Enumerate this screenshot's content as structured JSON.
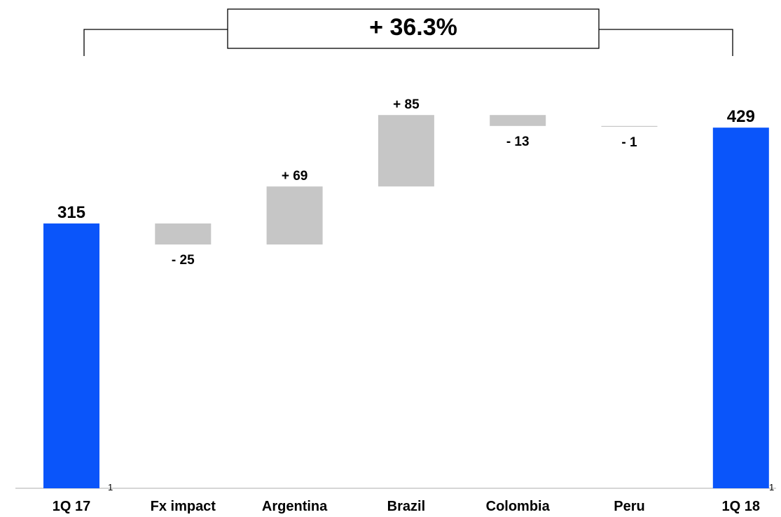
{
  "chart_data": {
    "type": "bar",
    "subtype": "waterfall",
    "categories": [
      "1Q 17",
      "Fx impact",
      "Argentina",
      "Brazil",
      "Colombia",
      "Peru",
      "1Q 18"
    ],
    "bars": [
      {
        "category": "1Q 17",
        "kind": "total",
        "value": 315,
        "label": "315"
      },
      {
        "category": "Fx impact",
        "kind": "delta",
        "value": -25,
        "label": "- 25"
      },
      {
        "category": "Argentina",
        "kind": "delta",
        "value": 69,
        "label": "+ 69"
      },
      {
        "category": "Brazil",
        "kind": "delta",
        "value": 85,
        "label": "+ 85"
      },
      {
        "category": "Colombia",
        "kind": "delta",
        "value": -13,
        "label": "- 13"
      },
      {
        "category": "Peru",
        "kind": "delta",
        "value": -1,
        "label": "- 1"
      },
      {
        "category": "1Q 18",
        "kind": "total",
        "value": 429,
        "label": "429"
      }
    ],
    "growth_label": "+ 36.3%",
    "ylim": [
      0,
      576
    ],
    "grid": false,
    "colors": {
      "total": "#0a55fa",
      "delta": "#c6c6c6",
      "axis": "#c8c8c8",
      "text": "#000000"
    },
    "tick_marks": [
      "1",
      "1"
    ]
  }
}
